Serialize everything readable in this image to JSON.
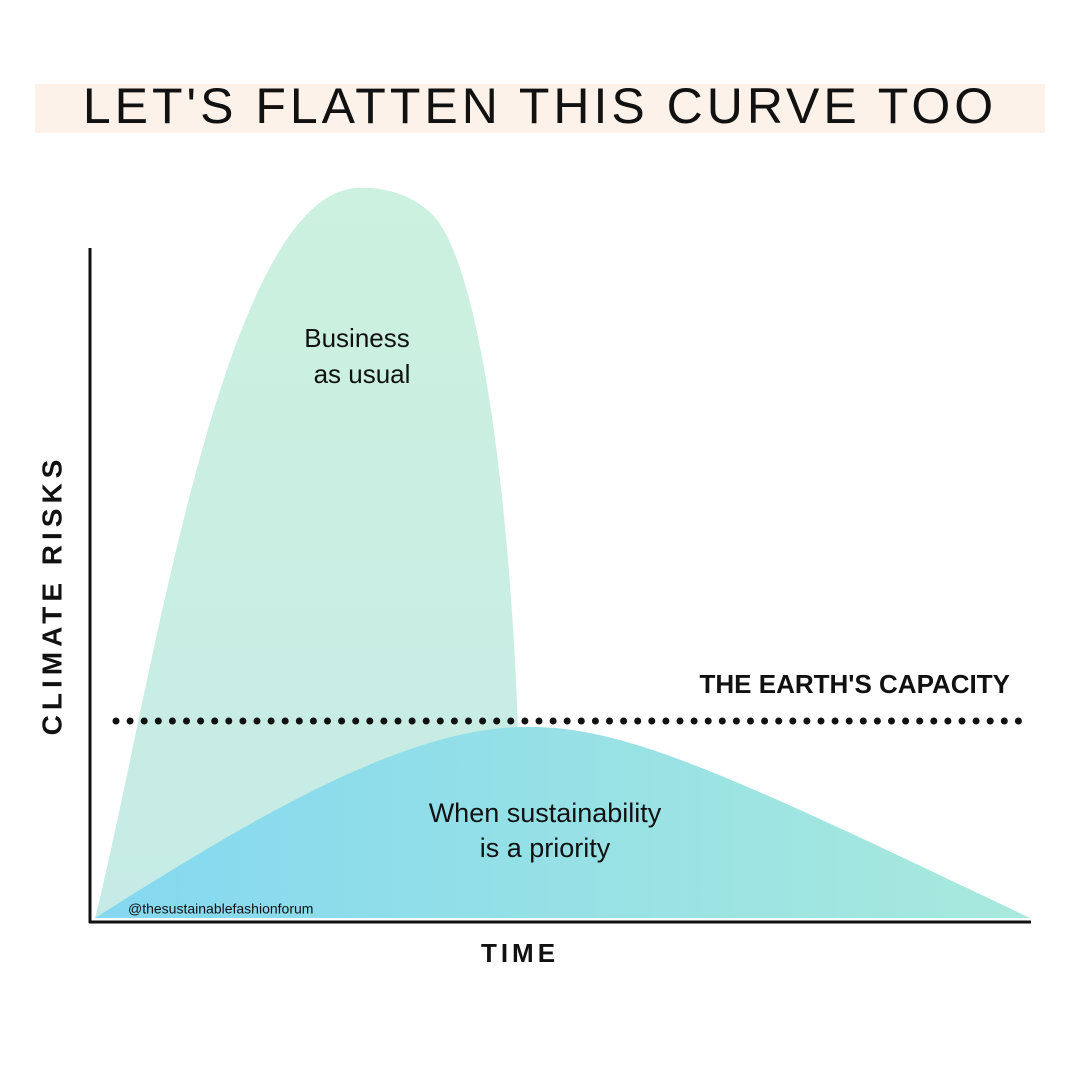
{
  "header": {
    "title": "LET'S FLATTEN THIS CURVE TOO"
  },
  "axes": {
    "y_label": "CLIMATE RISKS",
    "x_label": "TIME"
  },
  "capacity_line": {
    "label": "THE EARTH'S CAPACITY"
  },
  "curves": [
    {
      "label_lines": [
        "Business",
        "as usual"
      ]
    },
    {
      "label_lines": [
        "When sustainability",
        "is a priority"
      ]
    }
  ],
  "watermark": "@thesustainablefashionforum"
}
